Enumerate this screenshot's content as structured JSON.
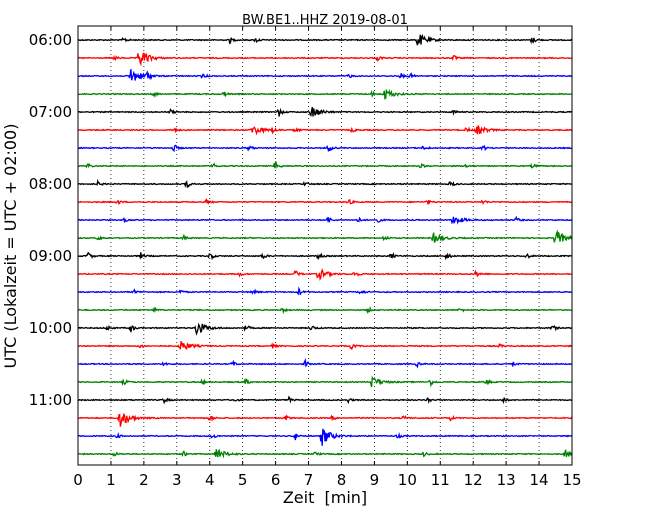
{
  "chart_data": {
    "type": "line",
    "title": "BW.BE1..HHZ 2019-08-01",
    "xlabel": "Zeit  [min]",
    "ylabel": "UTC (Lokalzeit = UTC + 02:00)",
    "xlim": [
      0,
      15
    ],
    "x_ticks": [
      "0",
      "1",
      "2",
      "3",
      "4",
      "5",
      "6",
      "7",
      "8",
      "9",
      "10",
      "11",
      "12",
      "13",
      "14",
      "15"
    ],
    "grid": "vertical dotted",
    "row_interval_min": 15,
    "y_ticks": [
      {
        "row": 0,
        "label": "06:00"
      },
      {
        "row": 4,
        "label": "07:00"
      },
      {
        "row": 8,
        "label": "08:00"
      },
      {
        "row": 12,
        "label": "09:00"
      },
      {
        "row": 16,
        "label": "10:00"
      },
      {
        "row": 20,
        "label": "11:00"
      }
    ],
    "colors": [
      "#000000",
      "#ff0000",
      "#0000ff",
      "#008000"
    ],
    "rows": [
      {
        "start": "06:00",
        "events": [
          [
            10.3,
            1.0
          ],
          [
            4.6,
            0.45
          ],
          [
            13.8,
            0.45
          ],
          [
            5.4,
            0.35
          ],
          [
            1.4,
            0.3
          ]
        ]
      },
      {
        "start": "06:15",
        "events": [
          [
            1.85,
            1.3
          ],
          [
            9.1,
            0.35
          ],
          [
            11.4,
            0.35
          ],
          [
            1.1,
            0.3
          ]
        ]
      },
      {
        "start": "06:30",
        "events": [
          [
            1.6,
            1.15
          ],
          [
            2.1,
            0.5
          ],
          [
            8.2,
            0.35
          ],
          [
            9.8,
            0.35
          ],
          [
            10.1,
            0.3
          ],
          [
            3.8,
            0.3
          ]
        ]
      },
      {
        "start": "06:45",
        "events": [
          [
            9.3,
            0.75
          ],
          [
            4.4,
            0.45
          ],
          [
            8.9,
            0.35
          ],
          [
            2.3,
            0.3
          ]
        ]
      },
      {
        "start": "07:00",
        "events": [
          [
            7.1,
            0.8
          ],
          [
            6.1,
            0.55
          ],
          [
            2.8,
            0.3
          ],
          [
            11.4,
            0.3
          ]
        ]
      },
      {
        "start": "07:15",
        "events": [
          [
            5.3,
            0.75
          ],
          [
            12.1,
            0.65
          ],
          [
            5.9,
            0.45
          ],
          [
            8.3,
            0.35
          ],
          [
            11.8,
            0.35
          ],
          [
            2.9,
            0.3
          ],
          [
            6.6,
            0.3
          ]
        ]
      },
      {
        "start": "07:30",
        "events": [
          [
            2.9,
            0.6
          ],
          [
            7.6,
            0.6
          ],
          [
            5.2,
            0.35
          ],
          [
            10.5,
            0.3
          ],
          [
            12.3,
            0.3
          ]
        ]
      },
      {
        "start": "07:45",
        "events": [
          [
            6.0,
            0.6
          ],
          [
            0.3,
            0.35
          ],
          [
            4.1,
            0.35
          ],
          [
            11.8,
            0.3
          ],
          [
            10.4,
            0.3
          ],
          [
            13.8,
            0.3
          ]
        ]
      },
      {
        "start": "08:00",
        "events": [
          [
            3.3,
            0.55
          ],
          [
            11.3,
            0.45
          ],
          [
            0.6,
            0.3
          ],
          [
            6.9,
            0.3
          ]
        ]
      },
      {
        "start": "08:15",
        "events": [
          [
            8.2,
            0.45
          ],
          [
            3.9,
            0.35
          ],
          [
            10.6,
            0.35
          ],
          [
            12.3,
            0.3
          ],
          [
            1.2,
            0.3
          ]
        ]
      },
      {
        "start": "08:30",
        "events": [
          [
            11.4,
            0.65
          ],
          [
            7.6,
            0.45
          ],
          [
            8.5,
            0.35
          ],
          [
            13.3,
            0.35
          ],
          [
            1.4,
            0.3
          ],
          [
            9.1,
            0.3
          ]
        ]
      },
      {
        "start": "08:45",
        "events": [
          [
            14.5,
            1.05
          ],
          [
            10.8,
            0.65
          ],
          [
            9.3,
            0.35
          ],
          [
            3.2,
            0.3
          ],
          [
            0.6,
            0.3
          ]
        ]
      },
      {
        "start": "09:00",
        "events": [
          [
            0.3,
            0.55
          ],
          [
            4.0,
            0.55
          ],
          [
            1.9,
            0.45
          ],
          [
            5.6,
            0.45
          ],
          [
            7.3,
            0.45
          ],
          [
            9.5,
            0.45
          ],
          [
            11.2,
            0.45
          ],
          [
            13.6,
            0.45
          ]
        ]
      },
      {
        "start": "09:15",
        "events": [
          [
            7.3,
            0.75
          ],
          [
            6.6,
            0.5
          ],
          [
            8.4,
            0.45
          ],
          [
            12.1,
            0.45
          ],
          [
            4.9,
            0.3
          ]
        ]
      },
      {
        "start": "09:30",
        "events": [
          [
            6.7,
            0.55
          ],
          [
            5.3,
            0.35
          ],
          [
            1.7,
            0.3
          ],
          [
            3.1,
            0.3
          ],
          [
            8.6,
            0.3
          ]
        ]
      },
      {
        "start": "09:45",
        "events": [
          [
            8.8,
            0.35
          ],
          [
            6.2,
            0.3
          ],
          [
            2.3,
            0.3
          ],
          [
            11.6,
            0.3
          ]
        ]
      },
      {
        "start": "10:00",
        "events": [
          [
            3.6,
            1.0
          ],
          [
            1.6,
            0.55
          ],
          [
            5.1,
            0.45
          ],
          [
            14.4,
            0.45
          ],
          [
            7.1,
            0.35
          ],
          [
            0.9,
            0.3
          ]
        ]
      },
      {
        "start": "10:15",
        "events": [
          [
            3.1,
            0.85
          ],
          [
            8.3,
            0.4
          ],
          [
            1.9,
            0.3
          ],
          [
            5.9,
            0.3
          ],
          [
            12.8,
            0.3
          ]
        ]
      },
      {
        "start": "10:30",
        "events": [
          [
            6.9,
            0.45
          ],
          [
            2.6,
            0.3
          ],
          [
            4.7,
            0.3
          ],
          [
            10.3,
            0.3
          ],
          [
            13.2,
            0.3
          ]
        ]
      },
      {
        "start": "10:45",
        "events": [
          [
            8.9,
            0.8
          ],
          [
            10.7,
            0.45
          ],
          [
            5.1,
            0.35
          ],
          [
            3.8,
            0.3
          ],
          [
            1.4,
            0.3
          ],
          [
            12.4,
            0.3
          ]
        ]
      },
      {
        "start": "11:00",
        "events": [
          [
            10.6,
            0.45
          ],
          [
            2.6,
            0.45
          ],
          [
            6.4,
            0.35
          ],
          [
            12.9,
            0.35
          ],
          [
            4.7,
            0.3
          ],
          [
            8.2,
            0.3
          ]
        ]
      },
      {
        "start": "11:15",
        "events": [
          [
            1.25,
            1.4
          ],
          [
            4.0,
            0.45
          ],
          [
            6.3,
            0.35
          ],
          [
            9.9,
            0.35
          ],
          [
            11.3,
            0.35
          ],
          [
            7.7,
            0.3
          ]
        ]
      },
      {
        "start": "11:30",
        "events": [
          [
            7.4,
            1.25
          ],
          [
            6.6,
            0.45
          ],
          [
            9.7,
            0.35
          ],
          [
            1.2,
            0.3
          ],
          [
            4.1,
            0.3
          ]
        ]
      },
      {
        "start": "11:45",
        "events": [
          [
            4.2,
            0.75
          ],
          [
            14.8,
            0.55
          ],
          [
            3.2,
            0.35
          ],
          [
            1.1,
            0.3
          ],
          [
            7.2,
            0.3
          ],
          [
            10.5,
            0.3
          ]
        ]
      }
    ]
  }
}
